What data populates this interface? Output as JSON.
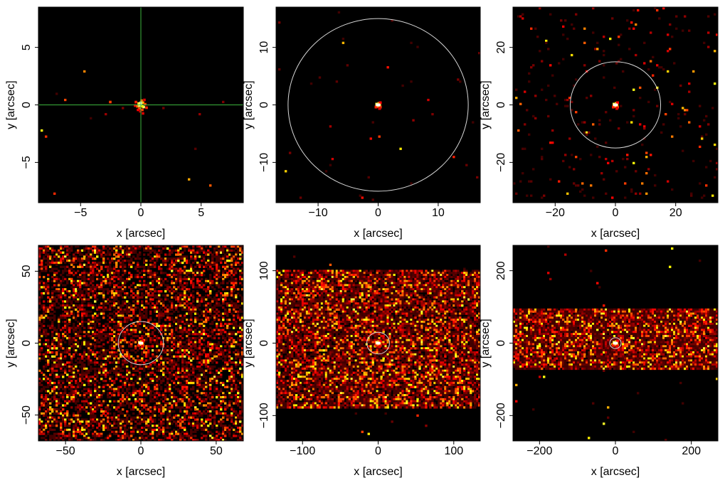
{
  "chart_data": [
    {
      "type": "heatmap",
      "title": "",
      "xlabel": "x [arcsec]",
      "ylabel": "y [arcsec]",
      "xlim": [
        -8.5,
        8.5
      ],
      "ylim": [
        -8.5,
        8.5
      ],
      "xticks": [
        -5,
        0,
        5
      ],
      "yticks": [
        -5,
        0,
        5
      ],
      "xtick_labels": [
        "−5",
        "0",
        "5"
      ],
      "ytick_labels": [
        "−5",
        "0",
        "5"
      ],
      "overlay": {
        "type": "crosshair",
        "center": [
          0,
          0
        ],
        "color": "#3cb43c"
      },
      "source": {
        "x": 0,
        "y": 0
      },
      "noise": {
        "density": 0.002,
        "y_extent": null
      },
      "colormap": "hot"
    },
    {
      "type": "heatmap",
      "title": "",
      "xlabel": "x [arcsec]",
      "ylabel": "y [arcsec]",
      "xlim": [
        -17,
        17
      ],
      "ylim": [
        -17,
        17
      ],
      "xticks": [
        -10,
        0,
        10
      ],
      "yticks": [
        -10,
        0,
        10
      ],
      "xtick_labels": [
        "−10",
        "0",
        "10"
      ],
      "ytick_labels": [
        "−10",
        "0",
        "10"
      ],
      "overlay": {
        "type": "circle",
        "center": [
          0,
          0
        ],
        "radius": 15,
        "color": "#d8d8d8"
      },
      "source": {
        "x": 0,
        "y": 0
      },
      "noise": {
        "density": 0.004,
        "y_extent": null
      },
      "colormap": "hot"
    },
    {
      "type": "heatmap",
      "title": "",
      "xlabel": "x [arcsec]",
      "ylabel": "y [arcsec]",
      "xlim": [
        -34,
        34
      ],
      "ylim": [
        -34,
        34
      ],
      "xticks": [
        -20,
        0,
        20
      ],
      "yticks": [
        -20,
        0,
        20
      ],
      "xtick_labels": [
        "−20",
        "0",
        "20"
      ],
      "ytick_labels": [
        "−20",
        "0",
        "20"
      ],
      "overlay": {
        "type": "circle",
        "center": [
          0,
          0
        ],
        "radius": 15,
        "color": "#d8d8d8"
      },
      "source": {
        "x": 0,
        "y": 0
      },
      "noise": {
        "density": 0.03,
        "y_extent": null
      },
      "colormap": "hot"
    },
    {
      "type": "heatmap",
      "title": "",
      "xlabel": "x [arcsec]",
      "ylabel": "y [arcsec]",
      "xlim": [
        -68,
        68
      ],
      "ylim": [
        -68,
        68
      ],
      "xticks": [
        -50,
        0,
        50
      ],
      "yticks": [
        -50,
        0,
        50
      ],
      "xtick_labels": [
        "−50",
        "0",
        "50"
      ],
      "ytick_labels": [
        "−50",
        "0",
        "50"
      ],
      "overlay": {
        "type": "circle",
        "center": [
          0,
          0
        ],
        "radius": 15,
        "color": "#d8d8d8"
      },
      "source": {
        "x": 0,
        "y": 0
      },
      "noise": {
        "density": 0.55,
        "y_extent": null
      },
      "colormap": "hot"
    },
    {
      "type": "heatmap",
      "title": "",
      "xlabel": "x [arcsec]",
      "ylabel": "y [arcsec]",
      "xlim": [
        -135,
        135
      ],
      "ylim": [
        -135,
        135
      ],
      "xticks": [
        -100,
        0,
        100
      ],
      "yticks": [
        -100,
        0,
        100
      ],
      "xtick_labels": [
        "−100",
        "0",
        "100"
      ],
      "ytick_labels": [
        "−100",
        "0",
        "100"
      ],
      "overlay": {
        "type": "circle",
        "center": [
          0,
          0
        ],
        "radius": 15,
        "color": "#d8d8d8"
      },
      "source": {
        "x": 0,
        "y": 0
      },
      "noise": {
        "density": 0.85,
        "y_extent": [
          -90,
          100
        ]
      },
      "colormap": "hot"
    },
    {
      "type": "heatmap",
      "title": "",
      "xlabel": "x [arcsec]",
      "ylabel": "y [arcsec]",
      "xlim": [
        -270,
        270
      ],
      "ylim": [
        -270,
        270
      ],
      "xticks": [
        -200,
        0,
        200
      ],
      "yticks": [
        -200,
        0,
        200
      ],
      "xtick_labels": [
        "−200",
        "0",
        "200"
      ],
      "ytick_labels": [
        "−200",
        "0",
        "200"
      ],
      "overlay": {
        "type": "circle",
        "center": [
          0,
          0
        ],
        "radius": 15,
        "color": "#d8d8d8"
      },
      "source": {
        "x": 0,
        "y": 0
      },
      "noise": {
        "density": 0.95,
        "y_extent": [
          -75,
          95
        ]
      },
      "colormap": "hot"
    }
  ]
}
